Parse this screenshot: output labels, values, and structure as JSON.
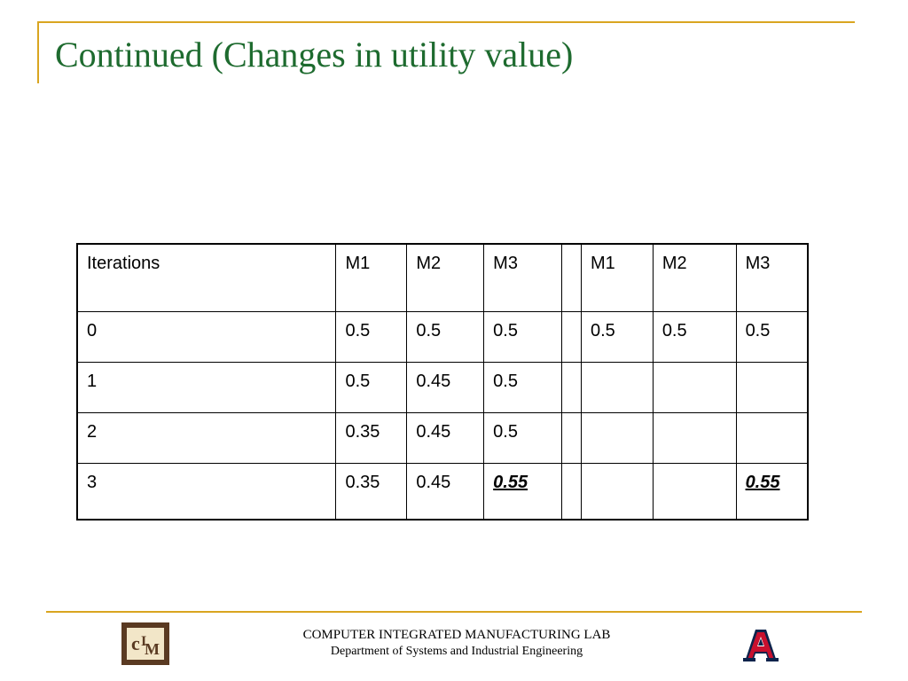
{
  "slide": {
    "title": "Continued (Changes in utility value)"
  },
  "table": {
    "header": [
      "Iterations",
      "M1",
      "M2",
      "M3",
      "",
      "M1",
      "M2",
      "M3"
    ],
    "rows": [
      [
        "0",
        "0.5",
        "0.5",
        "0.5",
        "",
        "0.5",
        "0.5",
        "0.5"
      ],
      [
        "1",
        "0.5",
        "0.45",
        "0.5",
        "",
        "",
        "",
        ""
      ],
      [
        "2",
        "0.35",
        "0.45",
        "0.5",
        "",
        "",
        "",
        ""
      ],
      [
        "3",
        "0.35",
        "0.45",
        "0.55",
        "",
        "",
        "",
        "0.55"
      ]
    ]
  },
  "footer": {
    "line1": "COMPUTER INTEGRATED MANUFACTURING LAB",
    "line2": "Department of Systems and Industrial Engineering"
  },
  "logos": {
    "left": "cim-logo-icon",
    "right": "university-a-logo-icon"
  },
  "colors": {
    "accent_rule": "#d9a520",
    "title": "#1e6b2f",
    "cim_logo_bg": "#5a3a22",
    "a_logo_red": "#c8102e",
    "a_logo_navy": "#0c234b"
  }
}
